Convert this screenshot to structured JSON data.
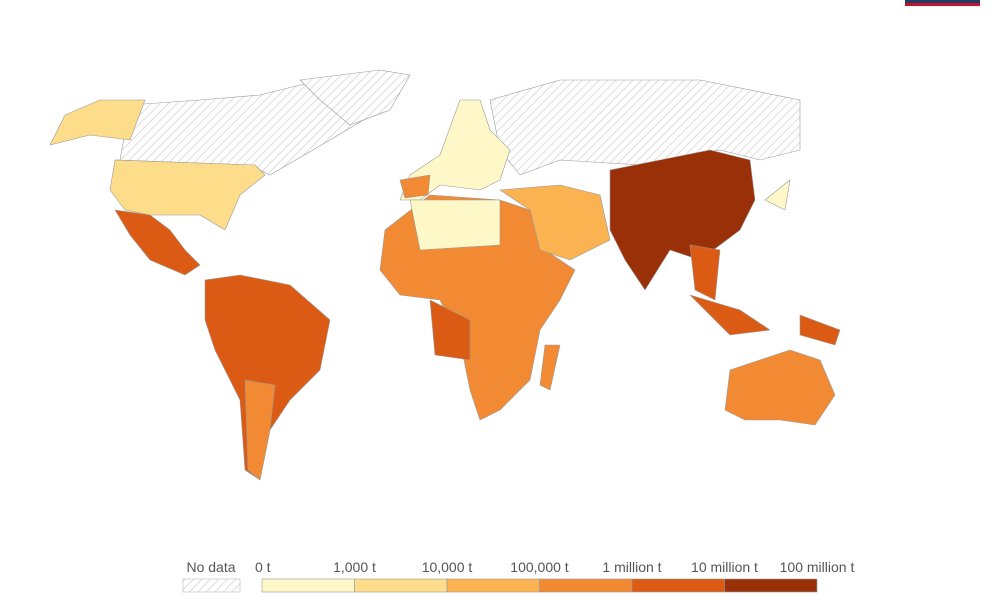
{
  "legend": {
    "no_data_label": "No data",
    "labels": [
      "0 t",
      "1,000 t",
      "10,000 t",
      "100,000 t",
      "1 million t",
      "10 million t",
      "100 million t"
    ],
    "colors": [
      "#fef8c8",
      "#fddc8a",
      "#fbb250",
      "#f28a33",
      "#db5a14",
      "#9a3008"
    ]
  }
}
